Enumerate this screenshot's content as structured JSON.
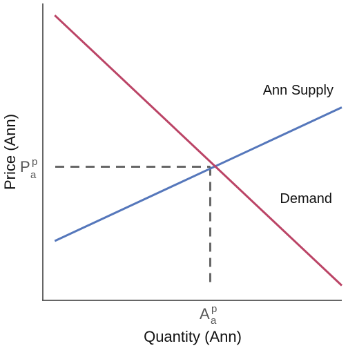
{
  "chart_data": {
    "type": "line",
    "xlabel": "Quantity (Ann)",
    "ylabel": "Price (Ann)",
    "xlim": [
      0,
      10
    ],
    "ylim": [
      0,
      10
    ],
    "grid": false,
    "series": [
      {
        "name": "Ann Supply",
        "color": "#5577bb",
        "x": [
          0.4,
          10
        ],
        "y": [
          2.0,
          6.5
        ]
      },
      {
        "name": "Demand",
        "color": "#bb4466",
        "x": [
          0.4,
          10
        ],
        "y": [
          9.6,
          0.5
        ]
      }
    ],
    "equilibrium": {
      "x": 5.6,
      "y": 4.5,
      "color": "#666666",
      "x_tick": {
        "main": "A",
        "sub": "a",
        "sup": "p"
      },
      "y_tick": {
        "main": "P",
        "sub": "a",
        "sup": "p"
      }
    }
  }
}
